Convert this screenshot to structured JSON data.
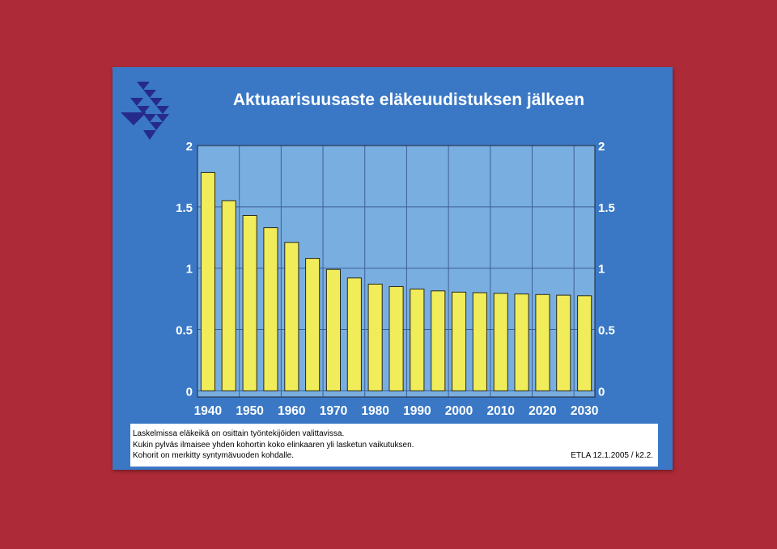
{
  "slide": {
    "title": "Aktuaarisuusaste eläkeuudistuksen jälkeen",
    "logo_icon": "etla-triangles-logo-icon",
    "colors": {
      "page_background": "#ad2a38",
      "slide_background": "#3a78c5",
      "plot_background": "#79aee0",
      "bar_fill": "#f1ec59",
      "bar_stroke": "#2a2a1a",
      "grid": "#3d5f95"
    }
  },
  "chart_data": {
    "type": "bar",
    "title": "Aktuaarisuusaste eläkeuudistuksen jälkeen",
    "xlabel": "",
    "ylabel": "",
    "ylim": [
      -0.05,
      2
    ],
    "yticks": [
      "2",
      "1.5",
      "1",
      "0.5",
      "0"
    ],
    "y_axis_both_sides": true,
    "grid": true,
    "x_labels": [
      "1940",
      "1950",
      "1960",
      "1970",
      "1980",
      "1990",
      "2000",
      "2010",
      "2020",
      "2030"
    ],
    "categories": [
      1940,
      1945,
      1950,
      1955,
      1960,
      1965,
      1970,
      1975,
      1980,
      1985,
      1990,
      1995,
      2000,
      2005,
      2010,
      2015,
      2020,
      2025,
      2030
    ],
    "values": [
      1.78,
      1.55,
      1.43,
      1.33,
      1.21,
      1.08,
      0.99,
      0.92,
      0.87,
      0.85,
      0.83,
      0.815,
      0.805,
      0.8,
      0.795,
      0.79,
      0.785,
      0.78,
      0.775
    ]
  },
  "caption": {
    "line1": "Laskelmissa eläkeikä on osittain työntekijöiden valittavissa.",
    "line2": "Kukin pylväs ilmaisee yhden kohortin koko elinkaaren yli lasketun vaikutuksen.",
    "line3": "Kohorit on merkitty syntymävuoden kohdalle.",
    "reference": "ETLA 12.1.2005 / k2.2."
  }
}
